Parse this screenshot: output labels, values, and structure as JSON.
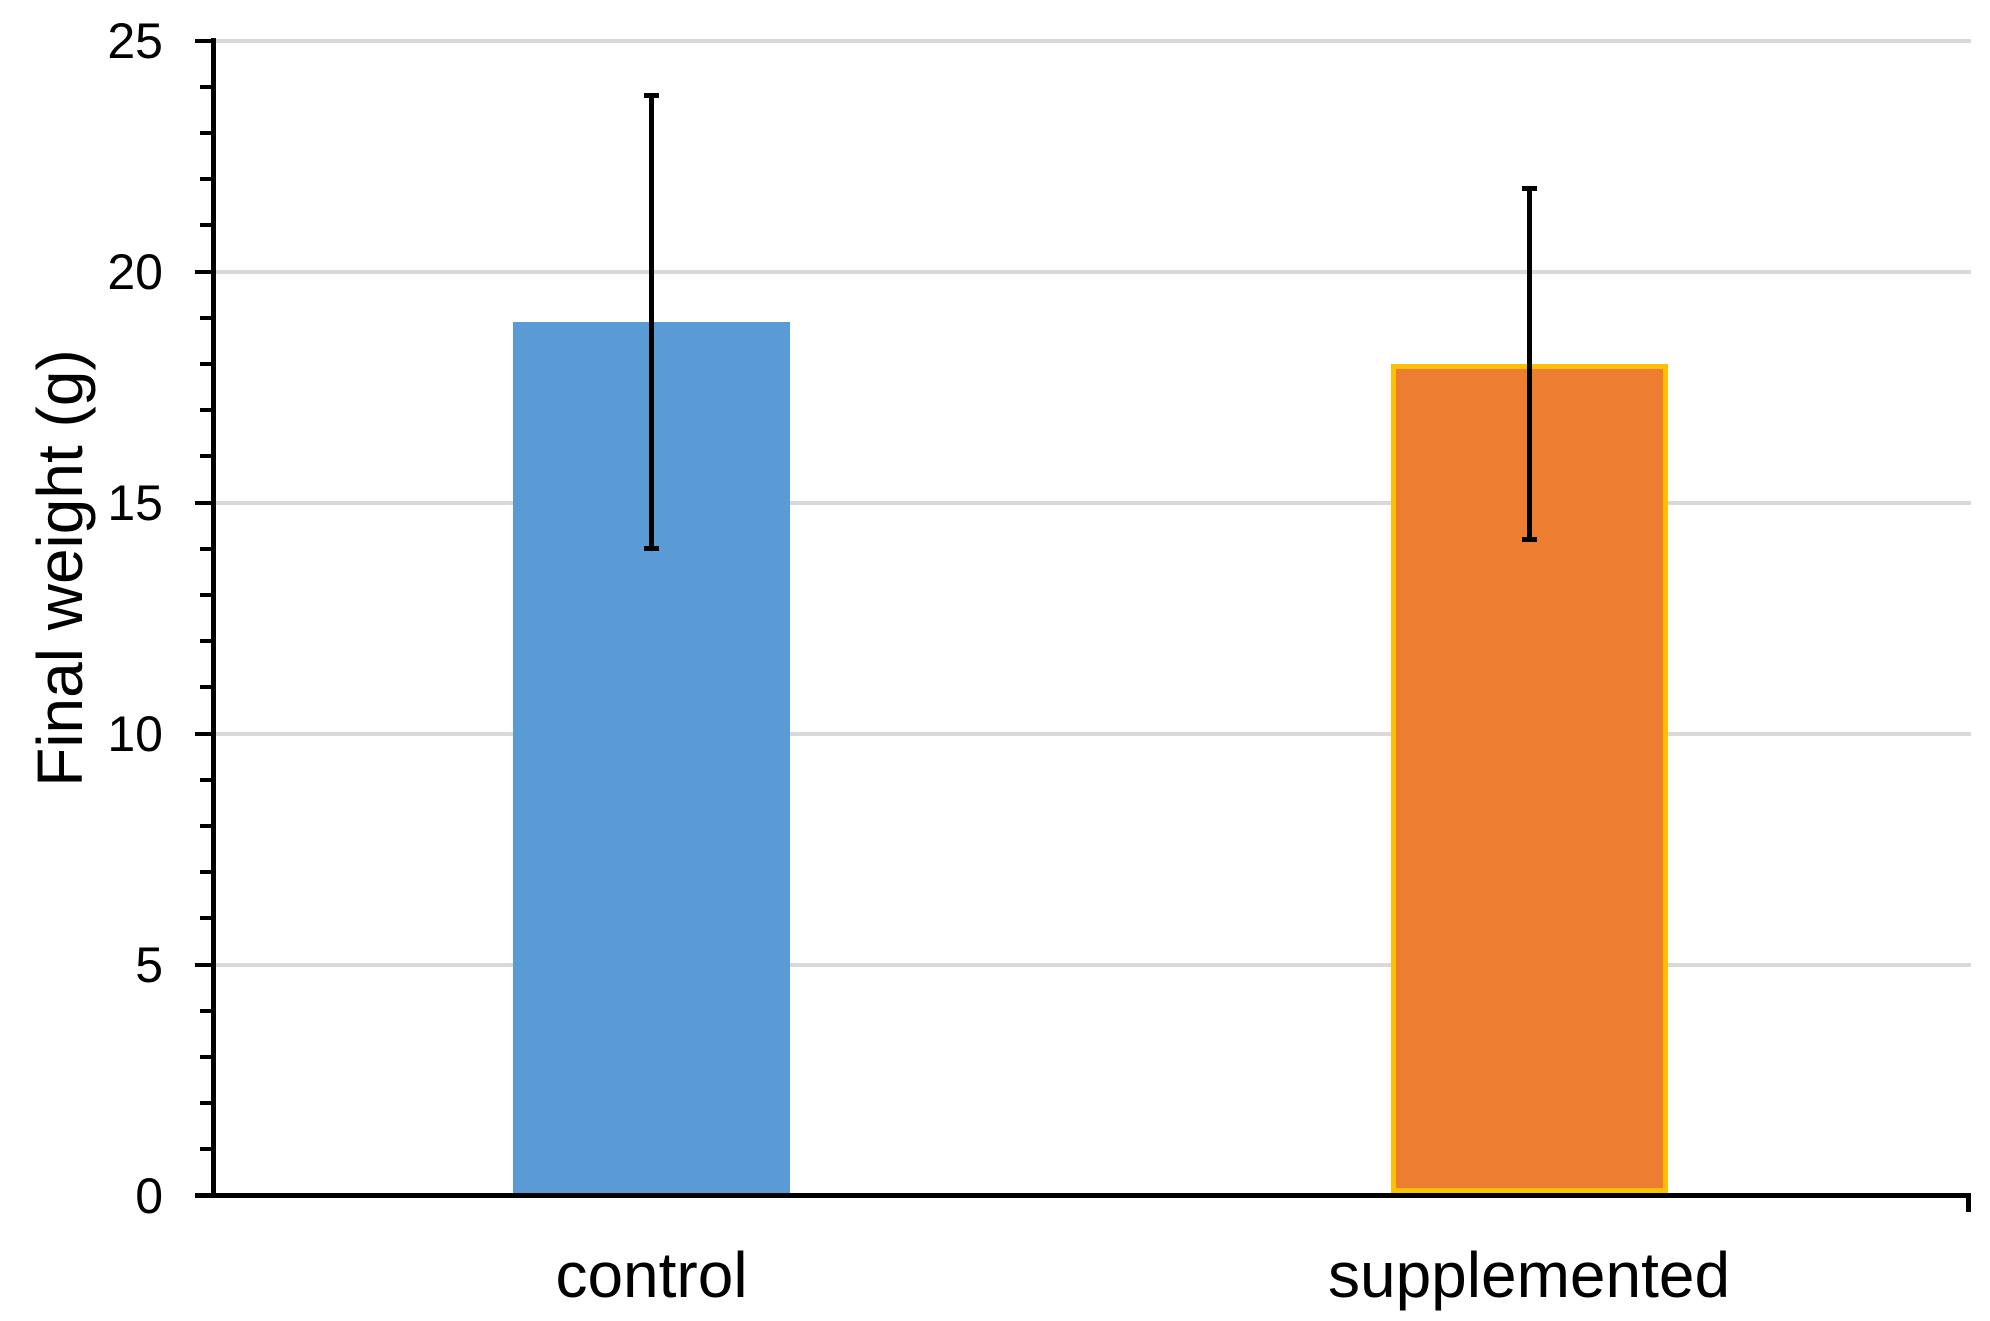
{
  "chart_data": {
    "type": "bar",
    "title": "",
    "ylabel": "Final weight (g)",
    "xlabel": "",
    "ylim": [
      0,
      25
    ],
    "yticks": [
      0,
      5,
      10,
      15,
      20,
      25
    ],
    "minor_tick_step": 1,
    "grid": "horizontal-major-gridlines",
    "legend": "none",
    "categories": [
      "control",
      "supplemented"
    ],
    "series": [
      {
        "name": "Final weight (g)",
        "values": [
          18.9,
          18.0
        ],
        "error_upper": [
          23.8,
          21.8
        ],
        "error_lower": [
          14.0,
          14.2
        ]
      }
    ],
    "bar_colors": [
      "#5B9BD5",
      "#ED7D31"
    ],
    "bar_border_colors": [
      null,
      "#FFC000"
    ],
    "error_bar_color": "#000000",
    "axis_color": "#000000",
    "gridline_color": "#D9D9D9",
    "text_color": "#000000",
    "background_color": "#FFFFFF"
  }
}
